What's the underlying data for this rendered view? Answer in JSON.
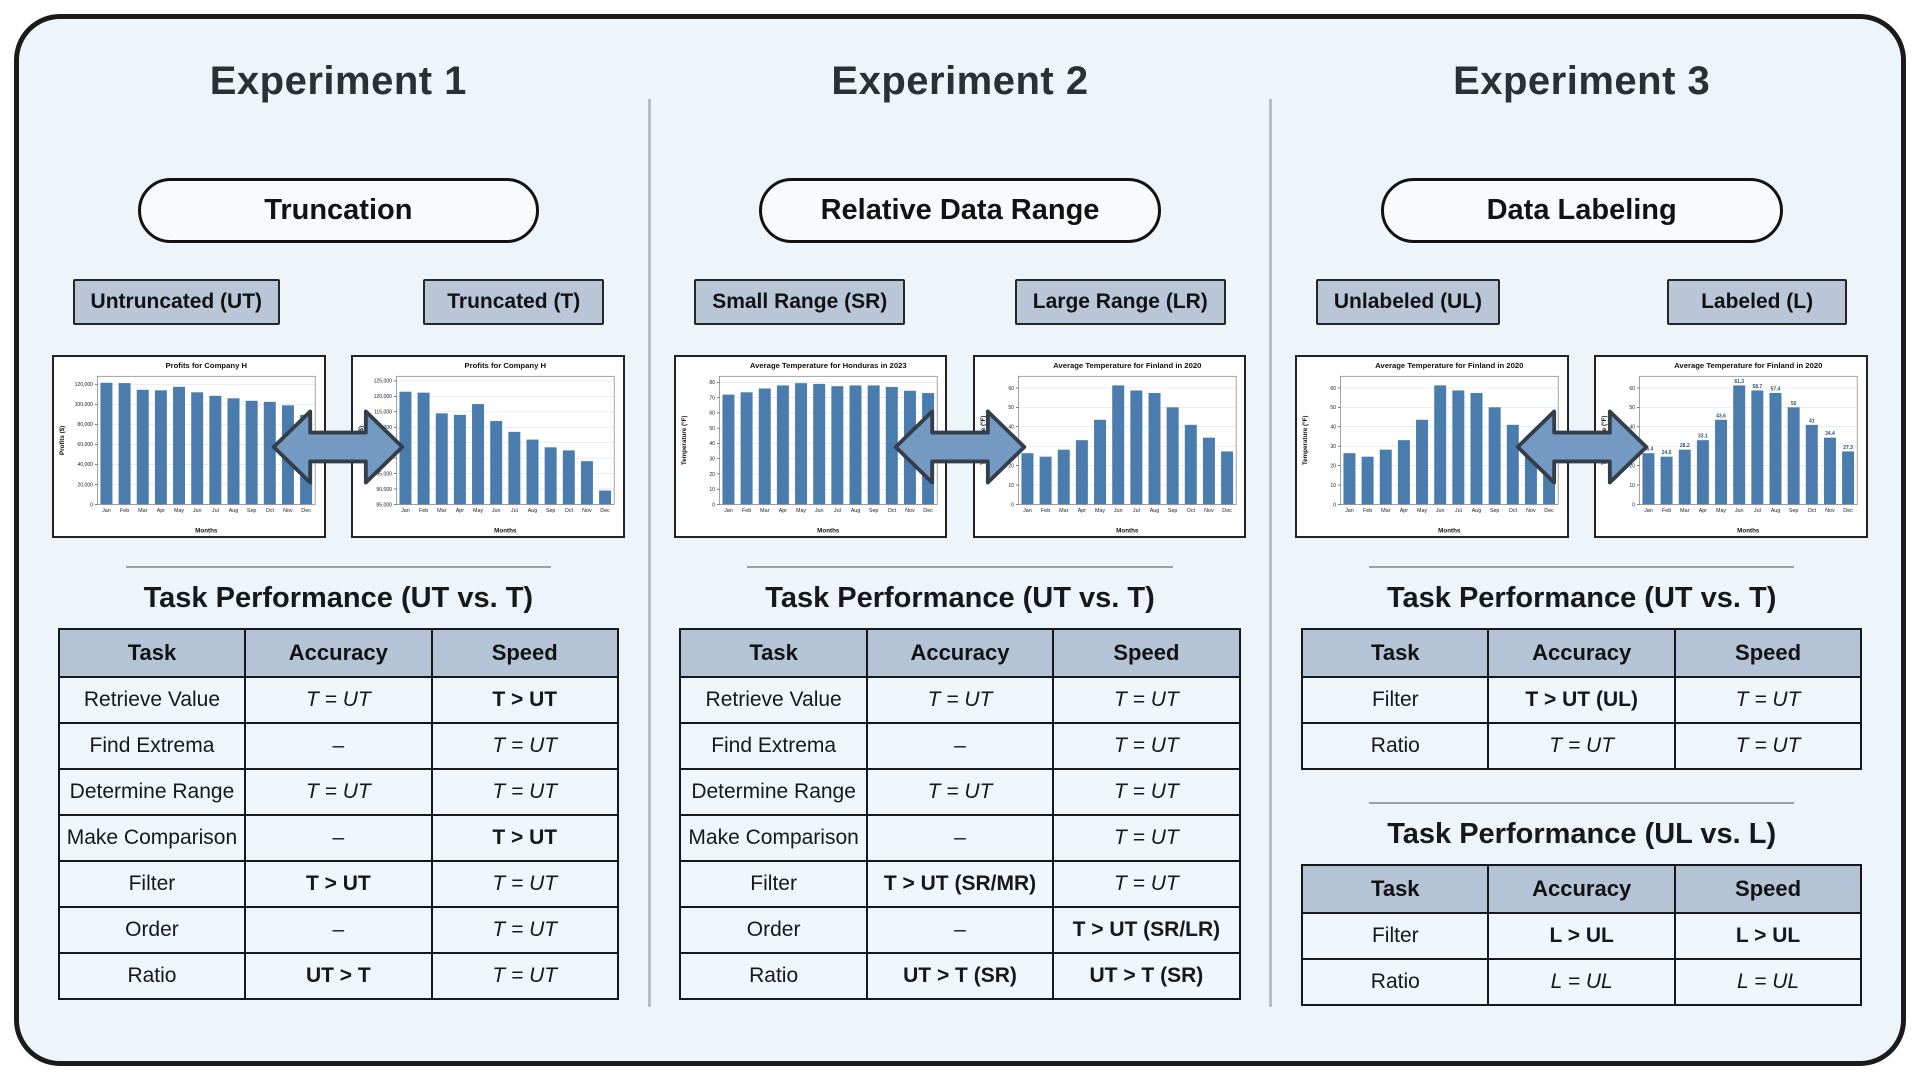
{
  "colors": {
    "background": "#edf4fa",
    "frame_border": "#1b1b1b",
    "tag_fill": "#b9c6d8",
    "table_header_fill": "#b5c3d7",
    "table_row_fill": "#eff6fc",
    "bar_fill": "#4a7cae",
    "bar_label_color": "#33506b",
    "arrow_fill": "#7499c2",
    "divider": "#b7bdc4"
  },
  "chart_data": [
    {
      "type": "bar",
      "title": "Profits for Company H",
      "xlabel": "Months",
      "ylabel": "Profits ($)",
      "categories": [
        "Jan",
        "Feb",
        "Mar",
        "Apr",
        "May",
        "Jun",
        "Jul",
        "Aug",
        "Sep",
        "Oct",
        "Nov",
        "Dec"
      ],
      "values": [
        121500,
        121200,
        114500,
        114000,
        117500,
        112000,
        108500,
        106000,
        103500,
        102500,
        99000,
        89500
      ],
      "ylim": [
        0,
        128000
      ],
      "yticks": [
        0,
        20000,
        40000,
        60000,
        80000,
        100000,
        120000
      ],
      "yfmt": "comma",
      "grid": true,
      "legend": "none"
    },
    {
      "type": "bar",
      "title": "Profits for Company H",
      "xlabel": "Months",
      "ylabel": "Profits ($)",
      "categories": [
        "Jan",
        "Feb",
        "Mar",
        "Apr",
        "May",
        "Jun",
        "Jul",
        "Aug",
        "Sep",
        "Oct",
        "Nov",
        "Dec"
      ],
      "values": [
        121500,
        121200,
        114500,
        114000,
        117500,
        112000,
        108500,
        106000,
        103500,
        102500,
        99000,
        89500
      ],
      "ylim": [
        85000,
        126500
      ],
      "yticks": [
        85000,
        90000,
        95000,
        100000,
        105000,
        110000,
        115000,
        120000,
        125000
      ],
      "yfmt": "comma",
      "grid": true,
      "legend": "none"
    },
    {
      "type": "bar",
      "title": "Average Temperature for Honduras in 2023",
      "xlabel": "Months",
      "ylabel": "Temperature (°F)",
      "categories": [
        "Jan",
        "Feb",
        "Mar",
        "Apr",
        "May",
        "Jun",
        "Jul",
        "Aug",
        "Sep",
        "Oct",
        "Nov",
        "Dec"
      ],
      "values": [
        72,
        73.5,
        76,
        78,
        79.5,
        79,
        77.5,
        78,
        78,
        77,
        74.5,
        73
      ],
      "ylim": [
        0,
        84
      ],
      "yticks": [
        0,
        10,
        20,
        30,
        40,
        50,
        60,
        70,
        80
      ],
      "yfmt": "plain",
      "grid": true,
      "legend": "none"
    },
    {
      "type": "bar",
      "title": "Average Temperature for Finland in 2020",
      "xlabel": "Months",
      "ylabel": "Temperature (°F)",
      "categories": [
        "Jan",
        "Feb",
        "Mar",
        "Apr",
        "May",
        "Jun",
        "Jul",
        "Aug",
        "Sep",
        "Oct",
        "Nov",
        "Dec"
      ],
      "values": [
        26.4,
        24.6,
        28.2,
        33.1,
        43.6,
        61.3,
        58.7,
        57.4,
        50,
        41,
        34.4,
        27.3
      ],
      "ylim": [
        0,
        66
      ],
      "yticks": [
        0,
        10,
        20,
        30,
        40,
        50,
        60
      ],
      "yfmt": "plain",
      "grid": true,
      "legend": "none"
    },
    {
      "type": "bar",
      "title": "Average Temperature for Finland in 2020",
      "xlabel": "Months",
      "ylabel": "Temperature (°F)",
      "categories": [
        "Jan",
        "Feb",
        "Mar",
        "Apr",
        "May",
        "Jun",
        "Jul",
        "Aug",
        "Sep",
        "Oct",
        "Nov",
        "Dec"
      ],
      "values": [
        26.4,
        24.6,
        28.2,
        33.1,
        43.6,
        61.3,
        58.7,
        57.4,
        50,
        41,
        34.4,
        27.3
      ],
      "ylim": [
        0,
        66
      ],
      "yticks": [
        0,
        10,
        20,
        30,
        40,
        50,
        60
      ],
      "yfmt": "plain",
      "grid": true,
      "legend": "none"
    },
    {
      "type": "bar",
      "title": "Average Temperature for Finland in 2020",
      "xlabel": "Months",
      "ylabel": "Temperature (°F)",
      "categories": [
        "Jan",
        "Feb",
        "Mar",
        "Apr",
        "May",
        "Jun",
        "Jul",
        "Aug",
        "Sep",
        "Oct",
        "Nov",
        "Dec"
      ],
      "values": [
        26.4,
        24.6,
        28.2,
        33.1,
        43.6,
        61.3,
        58.7,
        57.4,
        50,
        41,
        34.4,
        27.3
      ],
      "bar_labels": [
        "26.4",
        "24.6",
        "28.2",
        "33.1",
        "43.6",
        "61.3",
        "58.7",
        "57.4",
        "50",
        "41",
        "34.4",
        "27.3"
      ],
      "ylim": [
        0,
        66
      ],
      "yticks": [
        0,
        10,
        20,
        30,
        40,
        50,
        60
      ],
      "yfmt": "plain",
      "grid": true,
      "legend": "none"
    }
  ],
  "experiments": [
    {
      "title": "Experiment 1",
      "factor": "Truncation",
      "tags": [
        "Untruncated (UT)",
        "Truncated (T)"
      ],
      "tables": [
        {
          "title": "Task Performance (UT vs. T)",
          "columns": [
            "Task",
            "Accuracy",
            "Speed"
          ],
          "rows": [
            [
              {
                "t": "Retrieve Value",
                "s": "p"
              },
              {
                "t": "T = UT",
                "s": "i"
              },
              {
                "t": "T > UT",
                "s": "b"
              }
            ],
            [
              {
                "t": "Find Extrema",
                "s": "p"
              },
              {
                "t": "–",
                "s": "p"
              },
              {
                "t": "T = UT",
                "s": "i"
              }
            ],
            [
              {
                "t": "Determine Range",
                "s": "p"
              },
              {
                "t": "T = UT",
                "s": "i"
              },
              {
                "t": "T = UT",
                "s": "i"
              }
            ],
            [
              {
                "t": "Make Comparison",
                "s": "p"
              },
              {
                "t": "–",
                "s": "p"
              },
              {
                "t": "T > UT",
                "s": "b"
              }
            ],
            [
              {
                "t": "Filter",
                "s": "p"
              },
              {
                "t": "T > UT",
                "s": "b"
              },
              {
                "t": "T = UT",
                "s": "i"
              }
            ],
            [
              {
                "t": "Order",
                "s": "p"
              },
              {
                "t": "–",
                "s": "p"
              },
              {
                "t": "T = UT",
                "s": "i"
              }
            ],
            [
              {
                "t": "Ratio",
                "s": "p"
              },
              {
                "t": "UT > T",
                "s": "b"
              },
              {
                "t": "T = UT",
                "s": "i"
              }
            ]
          ]
        }
      ]
    },
    {
      "title": "Experiment 2",
      "factor": "Relative Data Range",
      "tags": [
        "Small Range (SR)",
        "Large Range (LR)"
      ],
      "tables": [
        {
          "title": "Task Performance (UT vs. T)",
          "columns": [
            "Task",
            "Accuracy",
            "Speed"
          ],
          "rows": [
            [
              {
                "t": "Retrieve Value",
                "s": "p"
              },
              {
                "t": "T = UT",
                "s": "i"
              },
              {
                "t": "T = UT",
                "s": "i"
              }
            ],
            [
              {
                "t": "Find Extrema",
                "s": "p"
              },
              {
                "t": "–",
                "s": "p"
              },
              {
                "t": "T = UT",
                "s": "i"
              }
            ],
            [
              {
                "t": "Determine Range",
                "s": "p"
              },
              {
                "t": "T = UT",
                "s": "i"
              },
              {
                "t": "T = UT",
                "s": "i"
              }
            ],
            [
              {
                "t": "Make Comparison",
                "s": "p"
              },
              {
                "t": "–",
                "s": "p"
              },
              {
                "t": "T = UT",
                "s": "i"
              }
            ],
            [
              {
                "t": "Filter",
                "s": "p"
              },
              {
                "t": "T > UT (SR/MR)",
                "s": "b"
              },
              {
                "t": "T = UT",
                "s": "i"
              }
            ],
            [
              {
                "t": "Order",
                "s": "p"
              },
              {
                "t": "–",
                "s": "p"
              },
              {
                "t": "T > UT (SR/LR)",
                "s": "b"
              }
            ],
            [
              {
                "t": "Ratio",
                "s": "p"
              },
              {
                "t": "UT > T (SR)",
                "s": "b"
              },
              {
                "t": "UT > T (SR)",
                "s": "b"
              }
            ]
          ]
        }
      ]
    },
    {
      "title": "Experiment 3",
      "factor": "Data Labeling",
      "tags": [
        "Unlabeled (UL)",
        "Labeled (L)"
      ],
      "tables": [
        {
          "title": "Task Performance (UT vs. T)",
          "columns": [
            "Task",
            "Accuracy",
            "Speed"
          ],
          "rows": [
            [
              {
                "t": "Filter",
                "s": "p"
              },
              {
                "t": "T > UT (UL)",
                "s": "b"
              },
              {
                "t": "T = UT",
                "s": "i"
              }
            ],
            [
              {
                "t": "Ratio",
                "s": "p"
              },
              {
                "t": "T = UT",
                "s": "i"
              },
              {
                "t": "T = UT",
                "s": "i"
              }
            ]
          ]
        },
        {
          "title": "Task Performance (UL vs. L)",
          "columns": [
            "Task",
            "Accuracy",
            "Speed"
          ],
          "rows": [
            [
              {
                "t": "Filter",
                "s": "p"
              },
              {
                "t": "L > UL",
                "s": "b"
              },
              {
                "t": "L > UL",
                "s": "b"
              }
            ],
            [
              {
                "t": "Ratio",
                "s": "p"
              },
              {
                "t": "L = UL",
                "s": "i"
              },
              {
                "t": "L = UL",
                "s": "i"
              }
            ]
          ]
        }
      ]
    }
  ]
}
